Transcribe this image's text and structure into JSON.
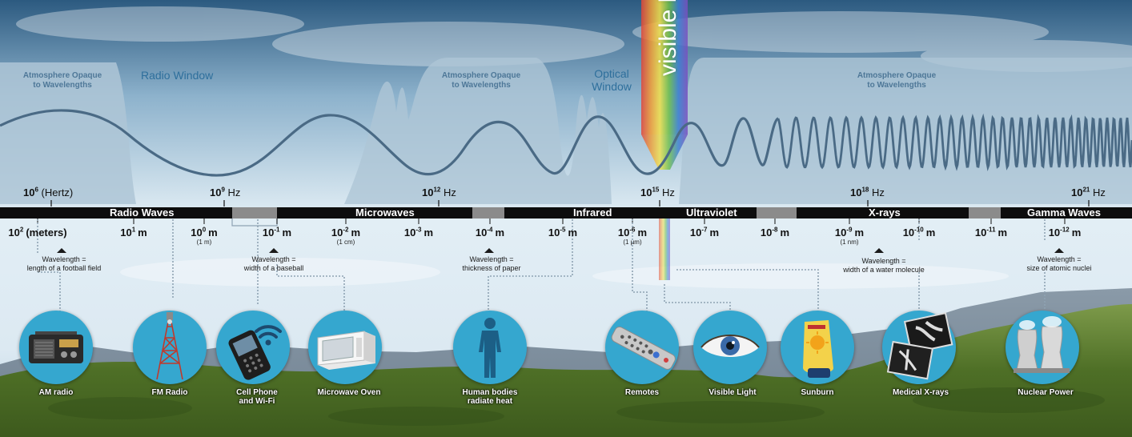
{
  "visible_light_label": "visible li",
  "atmosphere_zones": [
    {
      "line1": "Atmosphere Opaque",
      "line2": "to Wavelengths"
    },
    {
      "line1": "Atmosphere Opaque",
      "line2": "to Wavelengths"
    },
    {
      "line1": "Atmosphere Opaque",
      "line2": "to Wavelengths"
    }
  ],
  "windows": {
    "radio": "Radio Window",
    "optical_line1": "Optical",
    "optical_line2": "Window"
  },
  "frequencies": [
    {
      "base": "10",
      "exp": "6",
      "unit": "(Hertz)"
    },
    {
      "base": "10",
      "exp": "9",
      "unit": "Hz"
    },
    {
      "base": "10",
      "exp": "12",
      "unit": "Hz"
    },
    {
      "base": "10",
      "exp": "15",
      "unit": "Hz"
    },
    {
      "base": "10",
      "exp": "18",
      "unit": "Hz"
    },
    {
      "base": "10",
      "exp": "21",
      "unit": "Hz"
    }
  ],
  "bands": [
    "Radio Waves",
    "Microwaves",
    "Infrared",
    "Ultraviolet",
    "X-rays",
    "Gamma Waves"
  ],
  "wavelengths": [
    {
      "base": "10",
      "exp": "2",
      "unit": "(meters)",
      "sub": ""
    },
    {
      "base": "10",
      "exp": "1",
      "unit": "m",
      "sub": ""
    },
    {
      "base": "10",
      "exp": "0",
      "unit": "m",
      "sub": "(1 m)"
    },
    {
      "base": "10",
      "exp": "-1",
      "unit": "m",
      "sub": ""
    },
    {
      "base": "10",
      "exp": "-2",
      "unit": "m",
      "sub": "(1 cm)"
    },
    {
      "base": "10",
      "exp": "-3",
      "unit": "m",
      "sub": ""
    },
    {
      "base": "10",
      "exp": "-4",
      "unit": "m",
      "sub": ""
    },
    {
      "base": "10",
      "exp": "-5",
      "unit": "m",
      "sub": ""
    },
    {
      "base": "10",
      "exp": "-6",
      "unit": "m",
      "sub": "(1 µm)"
    },
    {
      "base": "10",
      "exp": "-7",
      "unit": "m",
      "sub": ""
    },
    {
      "base": "10",
      "exp": "-8",
      "unit": "m",
      "sub": ""
    },
    {
      "base": "10",
      "exp": "-9",
      "unit": "m",
      "sub": "(1 nm)"
    },
    {
      "base": "10",
      "exp": "-10",
      "unit": "m",
      "sub": ""
    },
    {
      "base": "10",
      "exp": "-11",
      "unit": "m",
      "sub": ""
    },
    {
      "base": "10",
      "exp": "-12",
      "unit": "m",
      "sub": ""
    }
  ],
  "scales": [
    {
      "line1": "Wavelength =",
      "line2": "length of a football field"
    },
    {
      "line1": "Wavelength =",
      "line2": "width of a baseball"
    },
    {
      "line1": "Wavelength =",
      "line2": "thickness of paper"
    },
    {
      "line1": "Wavelength =",
      "line2": "width of a water molecule"
    },
    {
      "line1": "Wavelength =",
      "line2": "size of atomic nuclei"
    }
  ],
  "sources": [
    {
      "line1": "AM radio",
      "line2": "",
      "icon": "am-radio-icon"
    },
    {
      "line1": "FM Radio",
      "line2": "",
      "icon": "radio-tower-icon"
    },
    {
      "line1": "Cell Phone",
      "line2": "and Wi-Fi",
      "icon": "cell-phone-icon"
    },
    {
      "line1": "Microwave Oven",
      "line2": "",
      "icon": "microwave-oven-icon"
    },
    {
      "line1": "Human bodies",
      "line2": "radiate heat",
      "icon": "human-body-icon"
    },
    {
      "line1": "Remotes",
      "line2": "",
      "icon": "remote-control-icon"
    },
    {
      "line1": "Visible Light",
      "line2": "",
      "icon": "eye-icon"
    },
    {
      "line1": "Sunburn",
      "line2": "",
      "icon": "sunscreen-icon"
    },
    {
      "line1": "Medical X-rays",
      "line2": "",
      "icon": "xray-image-icon"
    },
    {
      "line1": "Nuclear Power",
      "line2": "",
      "icon": "cooling-tower-icon"
    }
  ],
  "colors": {
    "sky_top": "#2f5f86",
    "sky_mid": "#d8e8f2",
    "wave": "#4a6a85",
    "band_bar": "#0d0d0d",
    "circle": "#35a7cf",
    "leader": "#8fa3b3",
    "hills": "#5e7d2f"
  }
}
